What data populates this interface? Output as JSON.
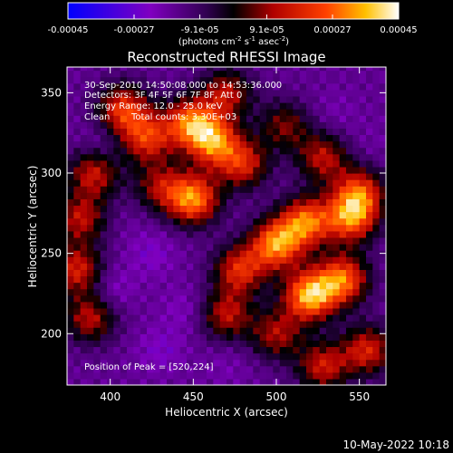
{
  "chart_data": {
    "type": "heatmap",
    "title": "Reconstructed RHESSI Image",
    "xlabel": "Heliocentric X (arcsec)",
    "ylabel": "Heliocentric Y (arcsec)",
    "xlim": [
      374,
      566
    ],
    "ylim": [
      168,
      366
    ],
    "xticks": [
      "400",
      "450",
      "500",
      "550"
    ],
    "xtick_values": [
      400,
      450,
      500,
      550
    ],
    "yticks": [
      "200",
      "250",
      "300",
      "350"
    ],
    "ytick_values": [
      200,
      250,
      300,
      350
    ],
    "colorbar": {
      "ticks": [
        "-0.00045",
        "-0.00027",
        "-9.1e-05",
        "9.1e-05",
        "0.00027",
        "0.00045"
      ],
      "tick_values": [
        -0.00045,
        -0.00027,
        -9.1e-05,
        9.1e-05,
        0.00027,
        0.00045
      ],
      "range": [
        -0.00045,
        0.00045
      ],
      "units": "(photons cm",
      "units_sup1": "-2",
      "units_mid1": " s",
      "units_sup2": "-1",
      "units_mid2": " asec",
      "units_sup3": "-2",
      "units_end": ")",
      "colors": [
        "#0000ff",
        "#8000c0",
        "#400060",
        "#000000",
        "#b00000",
        "#ff4000",
        "#ffc000",
        "#ffffff"
      ]
    },
    "annotations": {
      "line1": "30-Sep-2010 14:50:08.000 to 14:53:36.000",
      "line2": "Detectors: 3F 4F 5F 6F 7F 8F, Att 0",
      "line3": "Energy Range: 12.0 - 25.0 keV",
      "line4_a": "Clean",
      "line4_b": "Total counts: 3.30E+03",
      "peak": "Position of Peak = [520,224]"
    },
    "peak": {
      "x": 520,
      "y": 224
    },
    "hotspots": [
      {
        "x": 520,
        "y": 224,
        "v": 0.00045
      },
      {
        "x": 540,
        "y": 234,
        "v": 0.00036
      },
      {
        "x": 500,
        "y": 256,
        "v": 0.0004
      },
      {
        "x": 518,
        "y": 270,
        "v": 0.00036
      },
      {
        "x": 545,
        "y": 272,
        "v": 0.00034
      },
      {
        "x": 550,
        "y": 288,
        "v": 0.0003
      },
      {
        "x": 450,
        "y": 284,
        "v": 0.0004
      },
      {
        "x": 462,
        "y": 320,
        "v": 0.00036
      },
      {
        "x": 448,
        "y": 332,
        "v": 0.00034
      },
      {
        "x": 422,
        "y": 322,
        "v": 0.00028
      },
      {
        "x": 408,
        "y": 340,
        "v": 0.0003
      },
      {
        "x": 480,
        "y": 306,
        "v": 0.00026
      },
      {
        "x": 390,
        "y": 300,
        "v": 0.00024
      },
      {
        "x": 382,
        "y": 272,
        "v": 0.00022
      },
      {
        "x": 380,
        "y": 240,
        "v": 0.00026
      },
      {
        "x": 388,
        "y": 210,
        "v": 0.00022
      },
      {
        "x": 470,
        "y": 212,
        "v": 0.00022
      },
      {
        "x": 478,
        "y": 240,
        "v": 0.00028
      },
      {
        "x": 528,
        "y": 310,
        "v": 0.00022
      },
      {
        "x": 555,
        "y": 190,
        "v": 0.00026
      },
      {
        "x": 528,
        "y": 180,
        "v": 0.00024
      },
      {
        "x": 500,
        "y": 200,
        "v": 0.0002
      },
      {
        "x": 470,
        "y": 350,
        "v": 0.00022
      },
      {
        "x": 430,
        "y": 292,
        "v": 0.00018
      },
      {
        "x": 505,
        "y": 330,
        "v": 0.00016
      }
    ],
    "coldspots": [
      {
        "x": 400,
        "y": 228,
        "v": -0.0003
      },
      {
        "x": 425,
        "y": 250,
        "v": -0.00028
      },
      {
        "x": 445,
        "y": 215,
        "v": -0.00026
      },
      {
        "x": 430,
        "y": 190,
        "v": -0.00028
      },
      {
        "x": 395,
        "y": 318,
        "v": -0.00026
      },
      {
        "x": 535,
        "y": 338,
        "v": -0.00022
      },
      {
        "x": 555,
        "y": 318,
        "v": -0.0002
      },
      {
        "x": 470,
        "y": 180,
        "v": -0.00022
      },
      {
        "x": 412,
        "y": 270,
        "v": -0.00018
      }
    ]
  },
  "footer": {
    "date": "10-May-2022 10:18"
  }
}
